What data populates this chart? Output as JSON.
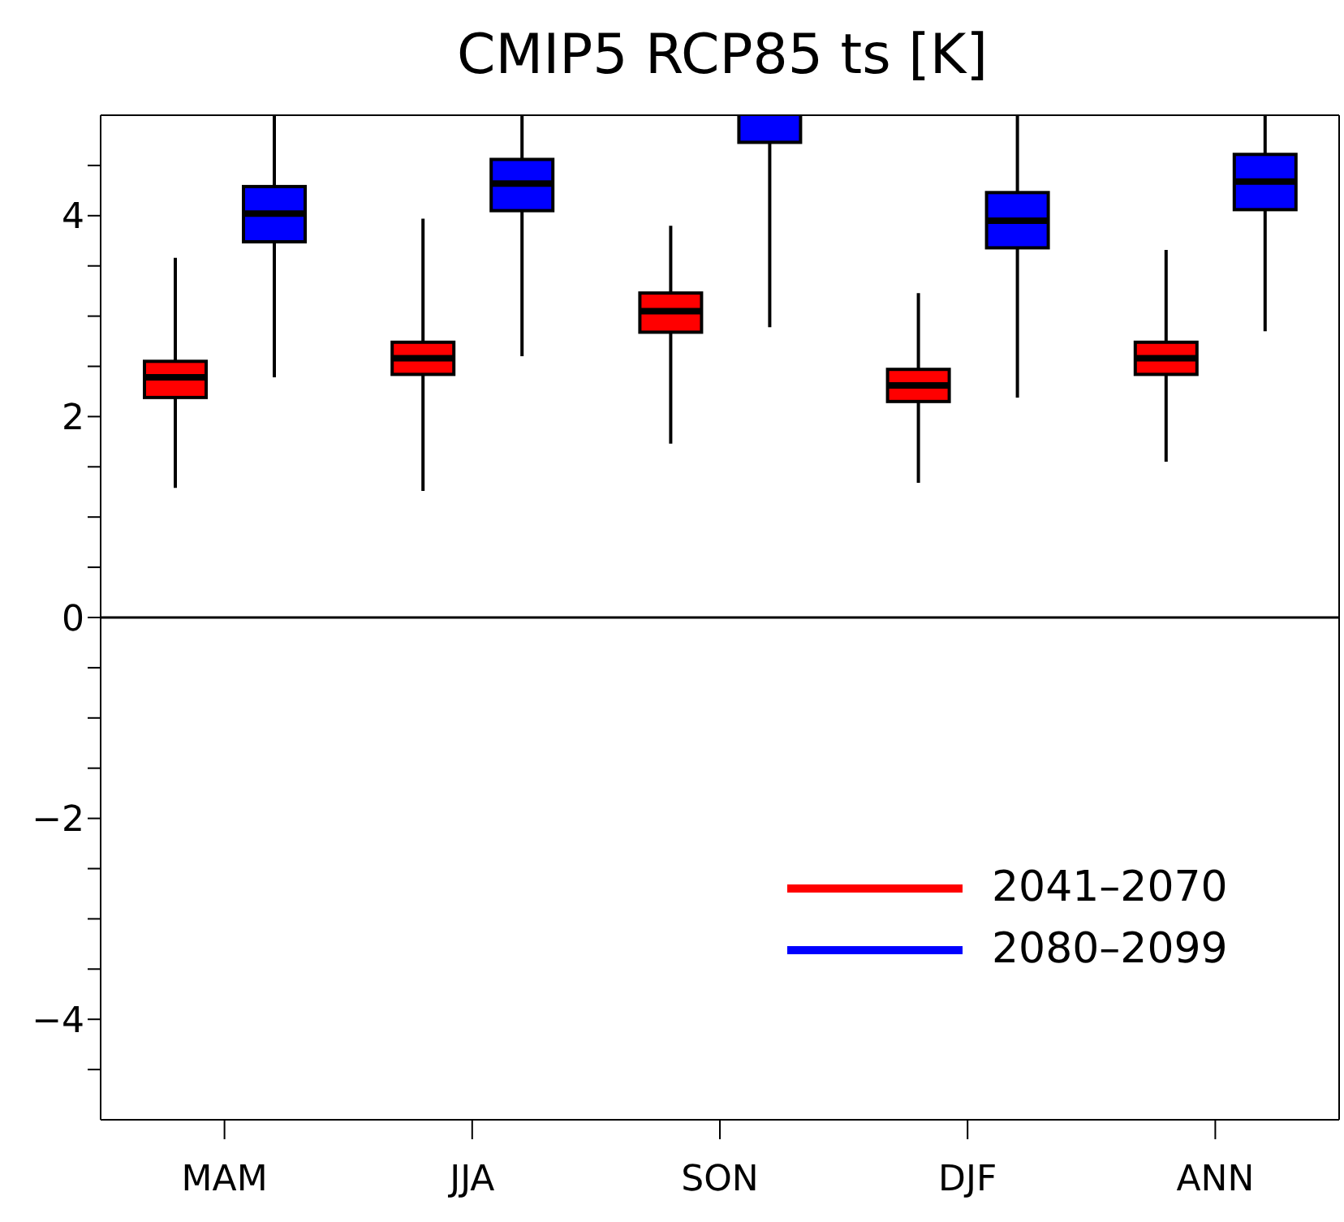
{
  "chart_data": {
    "type": "box",
    "title": "CMIP5 RCP85 ts [K]",
    "categories": [
      "MAM",
      "JJA",
      "SON",
      "DJF",
      "ANN"
    ],
    "series": [
      {
        "name": "2041–2070",
        "color": "#ff0000",
        "boxes": [
          {
            "low": 1.29,
            "q1": 2.19,
            "median": 2.39,
            "q3": 2.55,
            "high": 3.58
          },
          {
            "low": 1.26,
            "q1": 2.42,
            "median": 2.58,
            "q3": 2.74,
            "high": 3.97
          },
          {
            "low": 1.73,
            "q1": 2.84,
            "median": 3.05,
            "q3": 3.23,
            "high": 3.9
          },
          {
            "low": 1.34,
            "q1": 2.15,
            "median": 2.31,
            "q3": 2.47,
            "high": 3.23
          },
          {
            "low": 1.55,
            "q1": 2.42,
            "median": 2.58,
            "q3": 2.74,
            "high": 3.66
          }
        ]
      },
      {
        "name": "2080–2099",
        "color": "#0000ff",
        "boxes": [
          {
            "low": 2.39,
            "q1": 3.74,
            "median": 4.02,
            "q3": 4.29,
            "high": 6.0
          },
          {
            "low": 2.6,
            "q1": 4.05,
            "median": 4.32,
            "q3": 4.56,
            "high": 6.0
          },
          {
            "low": 2.89,
            "q1": 4.73,
            "median": 5.05,
            "q3": 5.4,
            "high": 6.0
          },
          {
            "low": 2.19,
            "q1": 3.68,
            "median": 3.95,
            "q3": 4.23,
            "high": 6.0
          },
          {
            "low": 2.85,
            "q1": 4.06,
            "median": 4.34,
            "q3": 4.61,
            "high": 6.0
          }
        ]
      }
    ],
    "ylim": [
      -5,
      5
    ],
    "yticks": [
      {
        "value": -4.5,
        "label": null
      },
      {
        "value": -4,
        "label": "−4"
      },
      {
        "value": -3.5,
        "label": null
      },
      {
        "value": -3,
        "label": null
      },
      {
        "value": -2.5,
        "label": null
      },
      {
        "value": -2,
        "label": "−2"
      },
      {
        "value": -1.5,
        "label": null
      },
      {
        "value": -1,
        "label": null
      },
      {
        "value": -0.5,
        "label": null
      },
      0,
      {
        "value": 0.5,
        "label": null
      },
      {
        "value": 1,
        "label": null
      },
      {
        "value": 1.5,
        "label": null
      },
      2,
      {
        "value": 2.5,
        "label": null
      },
      {
        "value": 3,
        "label": null
      },
      {
        "value": 3.5,
        "label": null
      },
      4,
      {
        "value": 4.5,
        "label": null
      }
    ],
    "ref_lines": [
      {
        "axis": "y",
        "value": 0,
        "label": null
      }
    ],
    "legend": "bottom right"
  }
}
